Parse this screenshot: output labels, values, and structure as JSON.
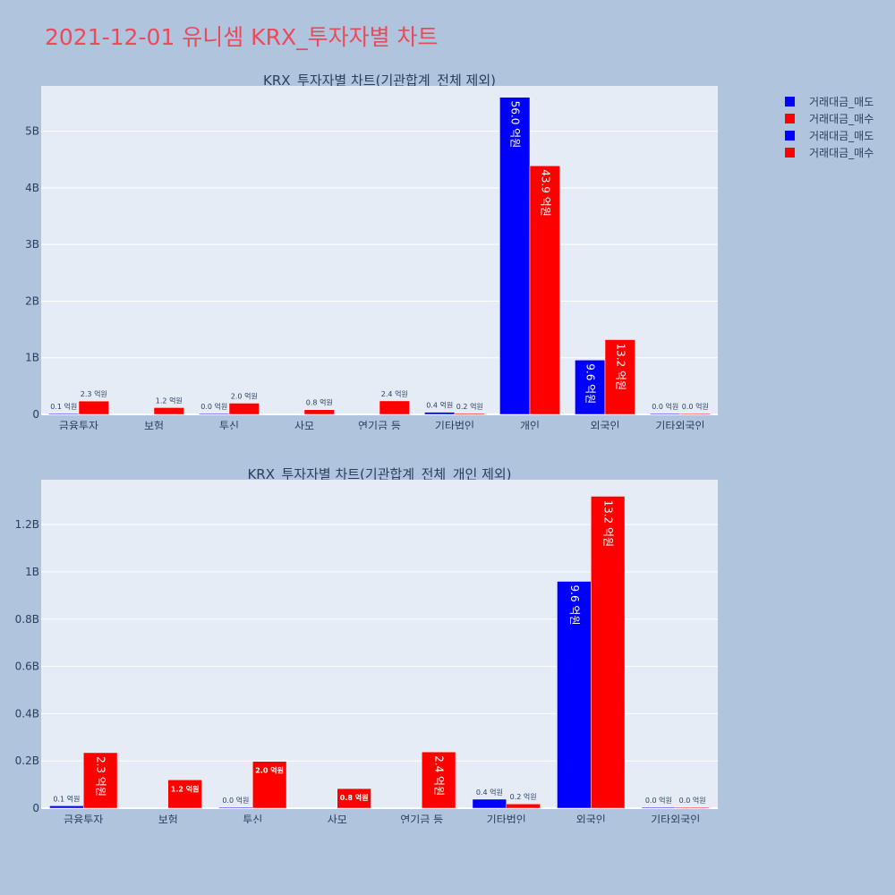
{
  "page_title": "2021-12-01 유니셈 KRX_투자자별 차트",
  "legend": [
    {
      "label": "거래대금_매도",
      "color": "#0000ff"
    },
    {
      "label": "거래대금_매수",
      "color": "#ff0000"
    },
    {
      "label": "거래대금_매도",
      "color": "#0000ff"
    },
    {
      "label": "거래대금_매수",
      "color": "#ff0000"
    }
  ],
  "chart_data": [
    {
      "type": "bar",
      "title": "KRX_투자자별 차트(기관합계_전체 제외)",
      "categories": [
        "금융투자",
        "보험",
        "투신",
        "사모",
        "연기금 등",
        "기타법인",
        "개인",
        "외국인",
        "기타외국인"
      ],
      "ylim": [
        0,
        5800000000
      ],
      "yticks": [
        0,
        1000000000,
        2000000000,
        3000000000,
        4000000000,
        5000000000
      ],
      "ytick_labels": [
        "0",
        "1B",
        "2B",
        "3B",
        "4B",
        "5B"
      ],
      "grid": true,
      "legend_position": "top-right",
      "series": [
        {
          "name": "거래대금_매도",
          "color": "#0000ff",
          "values": [
            10000000,
            0,
            3000000,
            0,
            0,
            38000000,
            5600000000,
            960000000,
            1000000
          ],
          "labels": [
            "0.1 억원",
            "",
            "0.0 억원",
            "",
            "",
            "0.4 억원",
            "56.0 억원",
            "9.6 억원",
            "0.0 억원"
          ]
        },
        {
          "name": "거래대금_매수",
          "color": "#ff0000",
          "values": [
            235000000,
            120000000,
            198000000,
            83000000,
            238000000,
            18000000,
            4390000000,
            1320000000,
            1000000
          ],
          "labels": [
            "2.3 억원",
            "1.2 억원",
            "2.0 억원",
            "0.8 억원",
            "2.4 억원",
            "0.2 억원",
            "43.9 억원",
            "13.2 억원",
            "0.0 억원"
          ]
        }
      ]
    },
    {
      "type": "bar",
      "title": "KRX_투자자별 차트(기관합계_전체_개인 제외)",
      "categories": [
        "금융투자",
        "보험",
        "투신",
        "사모",
        "연기금 등",
        "기타법인",
        "외국인",
        "기타외국인"
      ],
      "ylim": [
        0,
        1390000000
      ],
      "yticks": [
        0,
        200000000,
        400000000,
        600000000,
        800000000,
        1000000000,
        1200000000
      ],
      "ytick_labels": [
        "0",
        "0.2B",
        "0.4B",
        "0.6B",
        "0.8B",
        "1B",
        "1.2B"
      ],
      "grid": true,
      "legend_position": "top-right",
      "series": [
        {
          "name": "거래대금_매도",
          "color": "#0000ff",
          "values": [
            10000000,
            0,
            3000000,
            0,
            0,
            38000000,
            960000000,
            1000000
          ],
          "labels": [
            "0.1 억원",
            "",
            "0.0 억원",
            "",
            "",
            "0.4 억원",
            "9.6 억원",
            "0.0 억원"
          ]
        },
        {
          "name": "거래대금_매수",
          "color": "#ff0000",
          "values": [
            235000000,
            120000000,
            198000000,
            83000000,
            238000000,
            18000000,
            1320000000,
            1000000
          ],
          "labels": [
            "2.3 억원",
            "1.2 억원",
            "2.0 억원",
            "0.8 억원",
            "2.4 억원",
            "0.2 억원",
            "13.2 억원",
            "0.0 억원"
          ]
        }
      ]
    }
  ]
}
